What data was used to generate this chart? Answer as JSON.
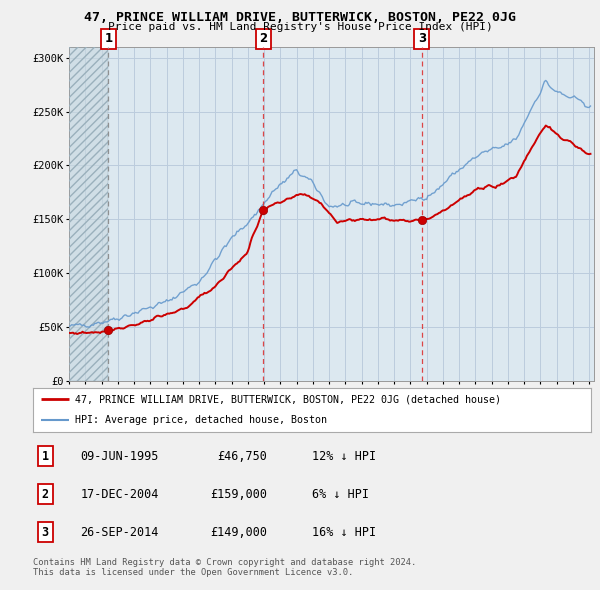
{
  "title": "47, PRINCE WILLIAM DRIVE, BUTTERWICK, BOSTON, PE22 0JG",
  "subtitle": "Price paid vs. HM Land Registry's House Price Index (HPI)",
  "sales": [
    {
      "date": "1995-06-09",
      "price": 46750,
      "label": "1",
      "vline_style": "dashed_gray"
    },
    {
      "date": "2004-12-17",
      "price": 159000,
      "label": "2",
      "vline_style": "dashed_red"
    },
    {
      "date": "2014-09-26",
      "price": 149000,
      "label": "3",
      "vline_style": "dashed_red"
    }
  ],
  "sale_labels": [
    {
      "num": "1",
      "date": "09-JUN-1995",
      "price": "£46,750",
      "pct": "12% ↓ HPI"
    },
    {
      "num": "2",
      "date": "17-DEC-2004",
      "price": "£159,000",
      "pct": "6% ↓ HPI"
    },
    {
      "num": "3",
      "date": "26-SEP-2014",
      "price": "£149,000",
      "pct": "16% ↓ HPI"
    }
  ],
  "hpi_color": "#6699cc",
  "sale_color": "#cc0000",
  "marker_color": "#cc0000",
  "vline_red": "#dd3333",
  "vline_gray": "#888888",
  "grid_color": "#bbccdd",
  "bg_color": "#f0f0f0",
  "plot_bg": "#dce8f0",
  "legend_bg": "#ffffff",
  "legend_border": "#aaaaaa",
  "legend_label_sale": "47, PRINCE WILLIAM DRIVE, BUTTERWICK, BOSTON, PE22 0JG (detached house)",
  "legend_label_hpi": "HPI: Average price, detached house, Boston",
  "footnote": "Contains HM Land Registry data © Crown copyright and database right 2024.\nThis data is licensed under the Open Government Licence v3.0.",
  "ylim": [
    0,
    310000
  ],
  "yticks": [
    0,
    50000,
    100000,
    150000,
    200000,
    250000,
    300000
  ],
  "ytick_labels": [
    "£0",
    "£50K",
    "£100K",
    "£150K",
    "£200K",
    "£250K",
    "£300K"
  ],
  "hpi_anchors_t": [
    1993.0,
    1994.0,
    1995.5,
    1997.0,
    1999.0,
    2001.0,
    2003.0,
    2004.5,
    2005.5,
    2007.0,
    2008.0,
    2009.0,
    2010.0,
    2011.5,
    2013.0,
    2014.0,
    2015.5,
    2016.5,
    2017.5,
    2018.5,
    2019.5,
    2020.5,
    2021.5,
    2022.3,
    2023.0,
    2024.0,
    2025.0
  ],
  "hpi_anchors_v": [
    50000,
    52000,
    56000,
    63000,
    73000,
    92000,
    132000,
    155000,
    175000,
    195000,
    183000,
    162000,
    163000,
    165000,
    163000,
    166000,
    175000,
    190000,
    202000,
    212000,
    216000,
    224000,
    255000,
    278000,
    268000,
    262000,
    256000
  ],
  "sale_anchors_t": [
    1993.0,
    1994.5,
    1995.42,
    1996.5,
    1998.0,
    2000.0,
    2002.0,
    2004.0,
    2004.92,
    2006.5,
    2007.5,
    2008.5,
    2009.5,
    2011.0,
    2013.0,
    2014.75,
    2015.5,
    2016.5,
    2017.5,
    2018.5,
    2019.5,
    2020.5,
    2021.5,
    2022.3,
    2023.0,
    2024.0,
    2025.0
  ],
  "sale_anchors_v": [
    44000,
    45000,
    46750,
    50000,
    56000,
    66000,
    88000,
    120000,
    159000,
    168000,
    174000,
    165000,
    148000,
    150000,
    150000,
    149000,
    154000,
    163000,
    172000,
    180000,
    182000,
    190000,
    218000,
    238000,
    228000,
    220000,
    210000
  ]
}
